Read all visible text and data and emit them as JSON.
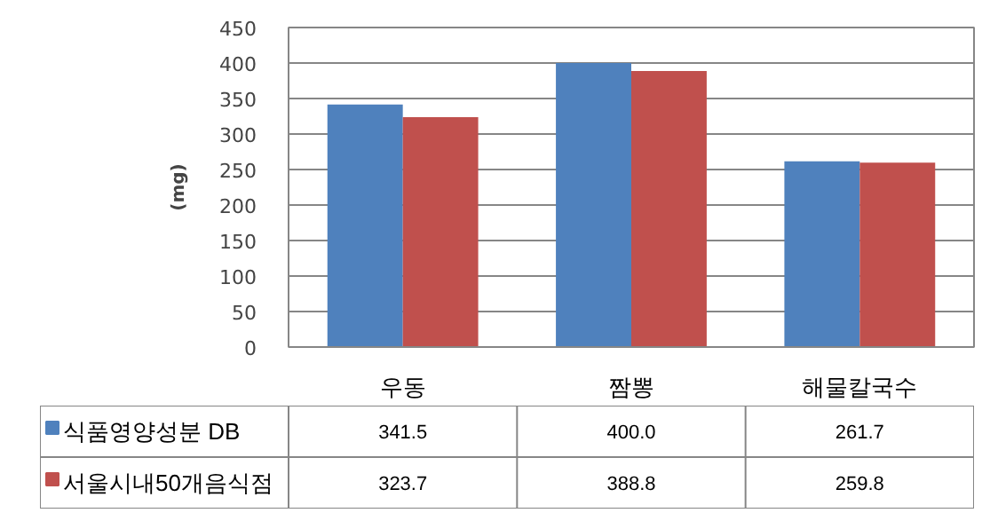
{
  "chart_data": {
    "type": "bar",
    "ylabel": "(mg)",
    "categories": [
      "우동",
      "짬뽕",
      "해물칼국수"
    ],
    "series": [
      {
        "name": "식품영양성분 DB",
        "color": "#4f81bd",
        "values": [
          341.5,
          400.0,
          261.7
        ],
        "value_labels": [
          "341.5",
          "400.0",
          "261.7"
        ]
      },
      {
        "name": "서울시내50개음식점",
        "color": "#c0504d",
        "values": [
          323.7,
          388.8,
          259.8
        ],
        "value_labels": [
          "323.7",
          "388.8",
          "259.8"
        ]
      }
    ],
    "ylim": [
      0,
      450
    ],
    "yticks": [
      0,
      50,
      100,
      150,
      200,
      250,
      300,
      350,
      400,
      450
    ],
    "grid": "y",
    "legend": "bottom"
  }
}
